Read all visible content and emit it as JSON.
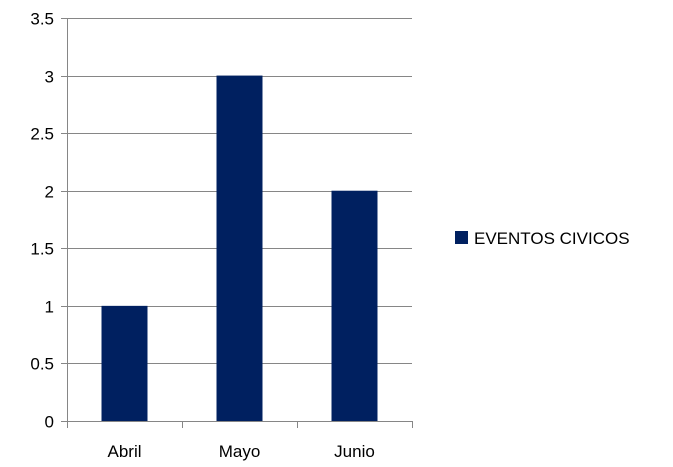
{
  "chart_data": {
    "type": "bar",
    "categories": [
      "Abril",
      "Mayo",
      "Junio"
    ],
    "series": [
      {
        "name": "EVENTOS CIVICOS",
        "values": [
          1,
          3,
          2
        ],
        "color": "#002060"
      }
    ],
    "title": "",
    "xlabel": "",
    "ylabel": "",
    "ylim": [
      0,
      3.5
    ],
    "yticks": [
      0,
      0.5,
      1,
      1.5,
      2,
      2.5,
      3,
      3.5
    ],
    "ytick_labels": [
      "0",
      "0.5",
      "1",
      "1.5",
      "2",
      "2.5",
      "3",
      "3.5"
    ],
    "grid": true,
    "legend": "right"
  }
}
